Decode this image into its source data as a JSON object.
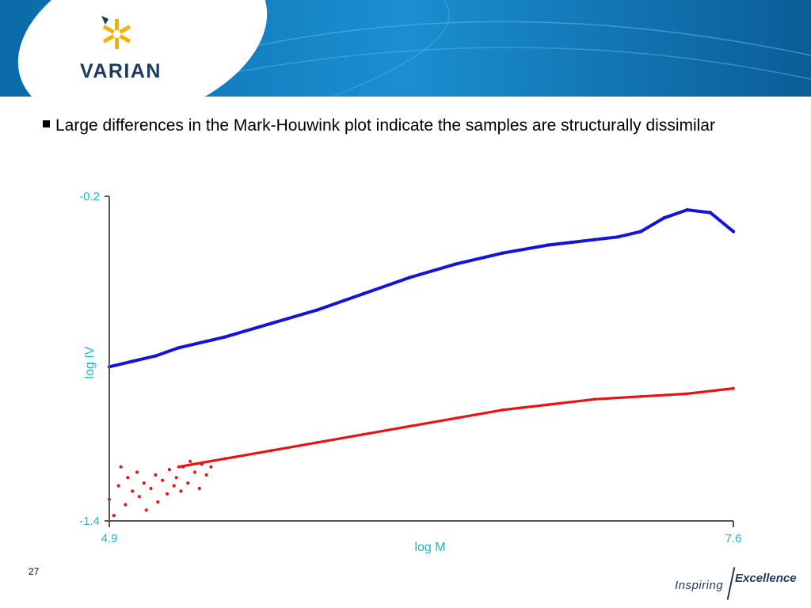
{
  "header": {
    "brand": "VARIAN",
    "colors": {
      "band_dark": "#0a5d96",
      "band_light": "#1b8ccc",
      "ellipse": "#ffffff",
      "logo_yellow": "#f2b400",
      "logo_dark": "#1b3a5c"
    }
  },
  "bullet": {
    "text": "Large differences in the Mark-Houwink plot indicate the samples are structurally dissimilar"
  },
  "chart_data": {
    "type": "scatter",
    "title": "",
    "xlabel": "log M",
    "ylabel": "log IV",
    "xlim": [
      4.9,
      7.6
    ],
    "ylim": [
      -1.4,
      -0.2
    ],
    "x_tick_labels": [
      "4.9",
      "7.6"
    ],
    "y_tick_labels": [
      "-0.2",
      "-1.4"
    ],
    "grid": false,
    "series": [
      {
        "color": "#1414d8",
        "style": "dense-points",
        "x": [
          4.9,
          5.0,
          5.1,
          5.2,
          5.4,
          5.6,
          5.8,
          6.0,
          6.2,
          6.4,
          6.6,
          6.8,
          6.9,
          7.0,
          7.1,
          7.2,
          7.3,
          7.4,
          7.5,
          7.6
        ],
        "y": [
          -0.83,
          -0.81,
          -0.79,
          -0.76,
          -0.72,
          -0.67,
          -0.62,
          -0.56,
          -0.5,
          -0.45,
          -0.41,
          -0.38,
          -0.37,
          -0.36,
          -0.35,
          -0.33,
          -0.28,
          -0.25,
          -0.26,
          -0.33
        ]
      },
      {
        "color": "#e81414",
        "style": "dense-points",
        "x": [
          5.2,
          5.4,
          5.6,
          5.8,
          6.0,
          6.2,
          6.4,
          6.6,
          6.8,
          7.0,
          7.2,
          7.4,
          7.6
        ],
        "y": [
          -1.2,
          -1.17,
          -1.14,
          -1.11,
          -1.08,
          -1.05,
          -1.02,
          -0.99,
          -0.97,
          -0.95,
          -0.94,
          -0.93,
          -0.91
        ]
      },
      {
        "color": "#e81414",
        "style": "scattered-points",
        "x": [
          4.9,
          4.92,
          4.94,
          4.95,
          4.97,
          4.98,
          5.0,
          5.02,
          5.03,
          5.05,
          5.06,
          5.08,
          5.1,
          5.11,
          5.13,
          5.15,
          5.16,
          5.18,
          5.19,
          5.21,
          5.22,
          5.24,
          5.25,
          5.27,
          5.29,
          5.3,
          5.32,
          5.34
        ],
        "y": [
          -1.32,
          -1.38,
          -1.27,
          -1.2,
          -1.34,
          -1.24,
          -1.29,
          -1.22,
          -1.31,
          -1.26,
          -1.36,
          -1.28,
          -1.23,
          -1.33,
          -1.25,
          -1.3,
          -1.21,
          -1.27,
          -1.24,
          -1.29,
          -1.2,
          -1.26,
          -1.18,
          -1.22,
          -1.28,
          -1.19,
          -1.23,
          -1.2
        ]
      }
    ]
  },
  "footer": {
    "page_number": "27",
    "tagline_1": "Inspiring",
    "tagline_2": "Excellence"
  }
}
